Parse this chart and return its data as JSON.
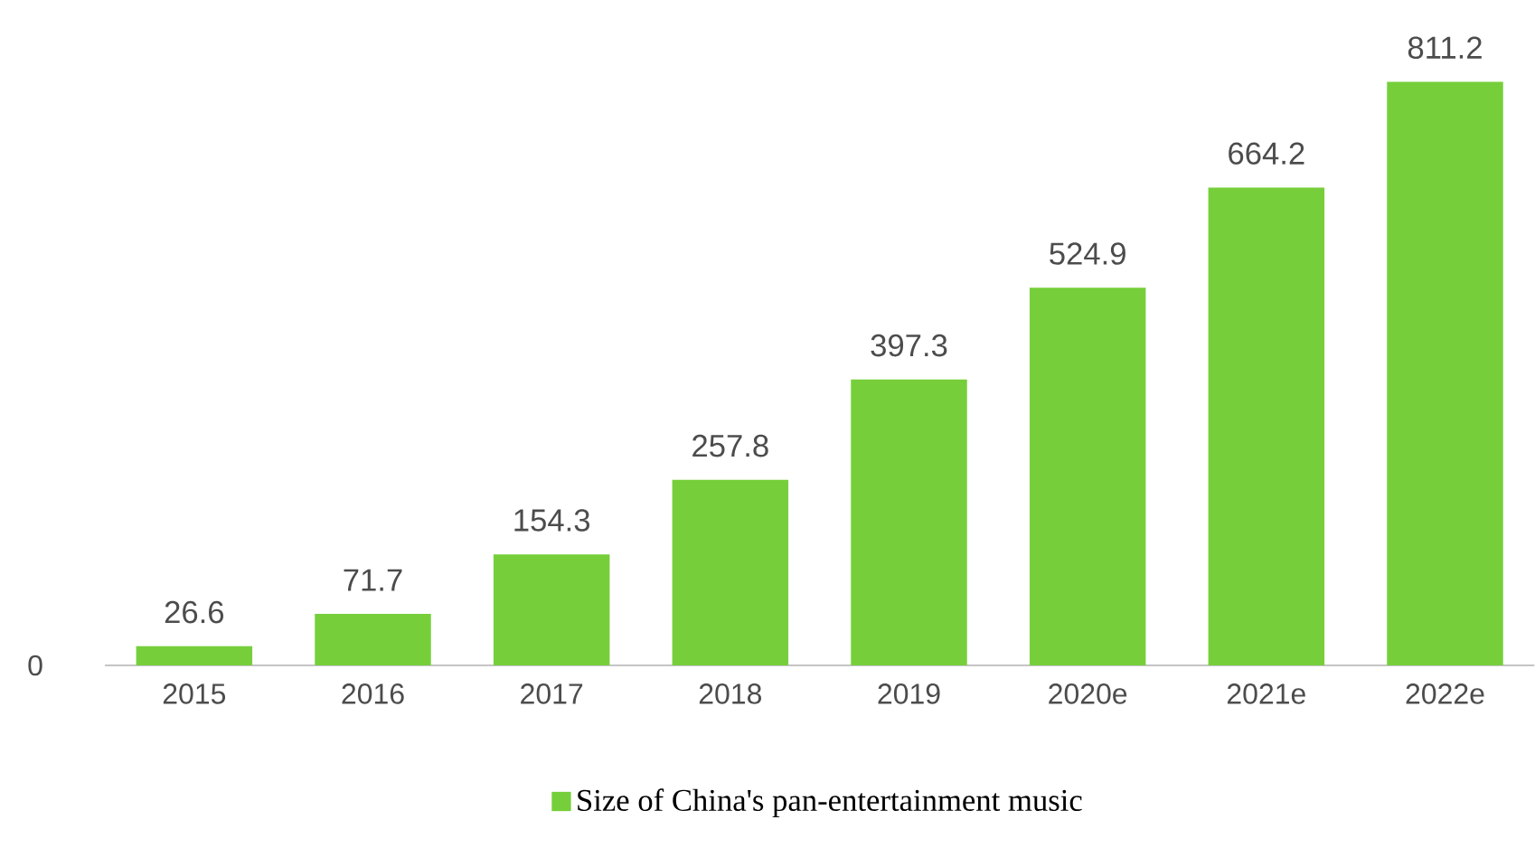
{
  "chart_data": {
    "type": "bar",
    "categories": [
      "2015",
      "2016",
      "2017",
      "2018",
      "2019",
      "2020e",
      "2021e",
      "2022e"
    ],
    "series": [
      {
        "name": "Size of China's pan-entertainment music",
        "color": "#76cf3a",
        "values": [
          26.6,
          71.7,
          154.3,
          257.8,
          397.3,
          524.9,
          664.2,
          811.2
        ]
      }
    ],
    "annotations": [
      "0"
    ],
    "data_labels": true,
    "legend": "bottom",
    "grid": false
  }
}
